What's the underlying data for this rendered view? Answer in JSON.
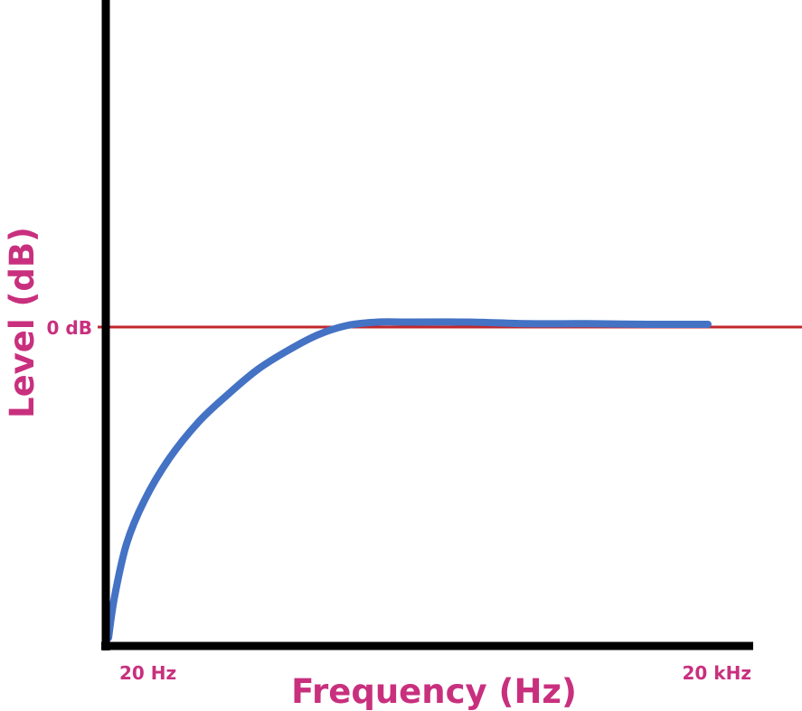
{
  "chart_data": {
    "type": "line",
    "title": "",
    "xlabel": "Frequency (Hz)",
    "ylabel": "Level (dB)",
    "x_tick_labels": [
      "20 Hz",
      "20 kHz"
    ],
    "y_tick_labels": [
      "0 dB"
    ],
    "reference_line": {
      "label": "0 dB",
      "y": 0
    },
    "series": [
      {
        "x": [
          0.0,
          0.01,
          0.03,
          0.06,
          0.1,
          0.15,
          0.2,
          0.25,
          0.3,
          0.35,
          0.4,
          0.45,
          0.5,
          0.6,
          0.7,
          0.8,
          0.9,
          1.0
        ],
        "y": [
          -1.0,
          -0.87,
          -0.7,
          -0.56,
          -0.43,
          -0.31,
          -0.22,
          -0.14,
          -0.08,
          -0.03,
          0.0,
          0.01,
          0.01,
          0.01,
          0.005,
          0.005,
          0.003,
          0.003
        ]
      }
    ],
    "xlim": [
      0,
      1.0
    ],
    "ylim": [
      -1.0,
      1.0
    ],
    "grid": false,
    "legend": "none"
  },
  "colors": {
    "axis": "#000000",
    "curve": "#4472c4",
    "reference_line": "#c0272d",
    "labels": "#c8307e"
  }
}
